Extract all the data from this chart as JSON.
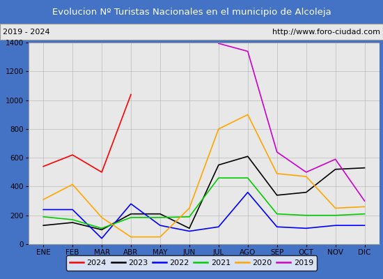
{
  "title": "Evolucion Nº Turistas Nacionales en el municipio de Alcoleja",
  "subtitle_left": "2019 - 2024",
  "subtitle_right": "http://www.foro-ciudad.com",
  "title_bg_color": "#4472c4",
  "title_text_color": "#ffffff",
  "subtitle_bg_color": "#e8e8e8",
  "plot_bg_color": "#e8e8e8",
  "fig_bg_color": "#4472c4",
  "months": [
    "ENE",
    "FEB",
    "MAR",
    "ABR",
    "MAY",
    "JUN",
    "JUL",
    "AGO",
    "SEP",
    "OCT",
    "NOV",
    "DIC"
  ],
  "ylim": [
    0,
    1400
  ],
  "yticks": [
    0,
    200,
    400,
    600,
    800,
    1000,
    1200,
    1400
  ],
  "series": {
    "2024": {
      "color": "#ff0000",
      "data": [
        540,
        620,
        500,
        1040,
        null,
        null,
        null,
        null,
        null,
        null,
        null,
        null
      ]
    },
    "2023": {
      "color": "#000000",
      "data": [
        130,
        150,
        100,
        210,
        210,
        110,
        550,
        610,
        340,
        360,
        520,
        530
      ]
    },
    "2022": {
      "color": "#0000ff",
      "data": [
        240,
        240,
        40,
        280,
        130,
        90,
        120,
        360,
        120,
        110,
        130,
        130
      ]
    },
    "2021": {
      "color": "#00cc00",
      "data": [
        190,
        170,
        110,
        185,
        185,
        190,
        460,
        460,
        210,
        200,
        200,
        210
      ]
    },
    "2020": {
      "color": "#ffa500",
      "data": [
        310,
        415,
        185,
        50,
        50,
        250,
        800,
        900,
        490,
        470,
        250,
        260
      ]
    },
    "2019": {
      "color": "#cc00cc",
      "data": [
        null,
        null,
        null,
        null,
        null,
        null,
        1395,
        1340,
        640,
        500,
        590,
        300
      ]
    }
  },
  "legend_order": [
    "2024",
    "2023",
    "2022",
    "2021",
    "2020",
    "2019"
  ]
}
